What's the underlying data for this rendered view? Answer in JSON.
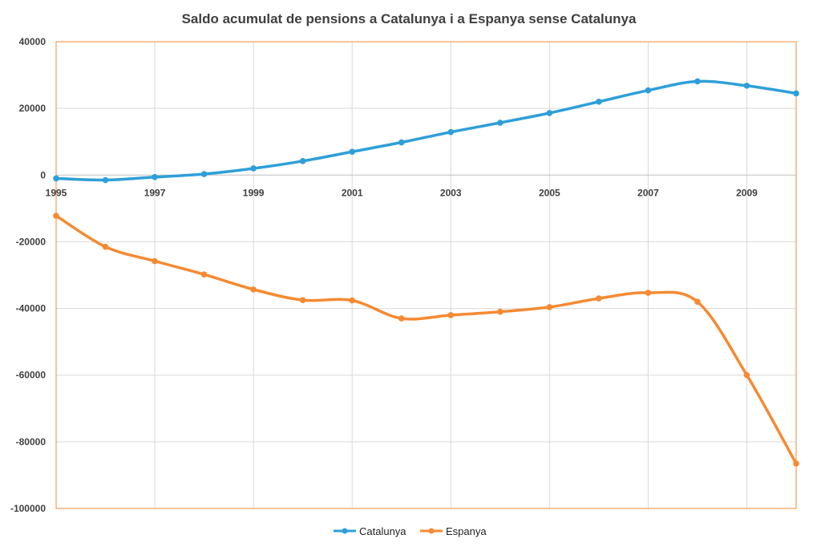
{
  "chart_data": {
    "type": "line",
    "title": "Saldo acumulat de pensions a Catalunya i a Espanya sense Catalunya",
    "xlabel": "",
    "ylabel": "",
    "x": [
      1995,
      1996,
      1997,
      1998,
      1999,
      2000,
      2001,
      2002,
      2003,
      2004,
      2005,
      2006,
      2007,
      2008,
      2009,
      2010
    ],
    "x_tick_labels": [
      "1995",
      "1997",
      "1999",
      "2001",
      "2003",
      "2005",
      "2007",
      "2009"
    ],
    "y_tick_labels": [
      "40000",
      "20000",
      "0",
      "-20000",
      "-40000",
      "-60000",
      "-80000",
      "-100000"
    ],
    "ylim": [
      -100000,
      40000
    ],
    "grid": true,
    "legend_position": "bottom",
    "series": [
      {
        "name": "Catalunya",
        "color": "#2e9fd8",
        "values": [
          -1000,
          -1500,
          -600,
          300,
          2000,
          4200,
          7000,
          9800,
          12900,
          15700,
          18600,
          22000,
          25400,
          28100,
          26800,
          24500
        ]
      },
      {
        "name": "Espanya",
        "color": "#f58a32",
        "values": [
          -12200,
          -21500,
          -25800,
          -29800,
          -34300,
          -37500,
          -37600,
          -43000,
          -42000,
          -41000,
          -39600,
          -37000,
          -35300,
          -38000,
          -60000,
          -86500
        ]
      }
    ],
    "colors": {
      "plot_border": "#f58a32",
      "grid": "#d9d9d9"
    }
  }
}
